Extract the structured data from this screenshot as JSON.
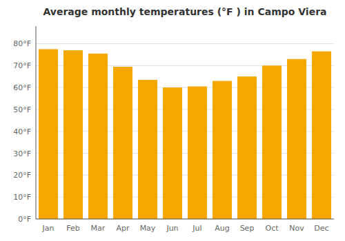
{
  "chart_data": {
    "type": "bar",
    "title": "Average monthly temperatures (°F ) in Campo Viera",
    "categories": [
      "Jan",
      "Feb",
      "Mar",
      "Apr",
      "May",
      "Jun",
      "Jul",
      "Aug",
      "Sep",
      "Oct",
      "Nov",
      "Dec"
    ],
    "values": [
      77.5,
      77.0,
      75.5,
      69.5,
      63.5,
      60.0,
      60.5,
      63.0,
      65.0,
      70.0,
      73.0,
      76.5
    ],
    "color": "#F5A800",
    "ylim": [
      0,
      88
    ],
    "yticks": [
      {
        "value": 0,
        "label": "0°F"
      },
      {
        "value": 10,
        "label": "10°F"
      },
      {
        "value": 20,
        "label": "20°F"
      },
      {
        "value": 30,
        "label": "30°F"
      },
      {
        "value": 40,
        "label": "40°F"
      },
      {
        "value": 50,
        "label": "50°F"
      },
      {
        "value": 60,
        "label": "60°F"
      },
      {
        "value": 70,
        "label": "70°F"
      },
      {
        "value": 80,
        "label": "80°F"
      }
    ],
    "grid": true
  }
}
